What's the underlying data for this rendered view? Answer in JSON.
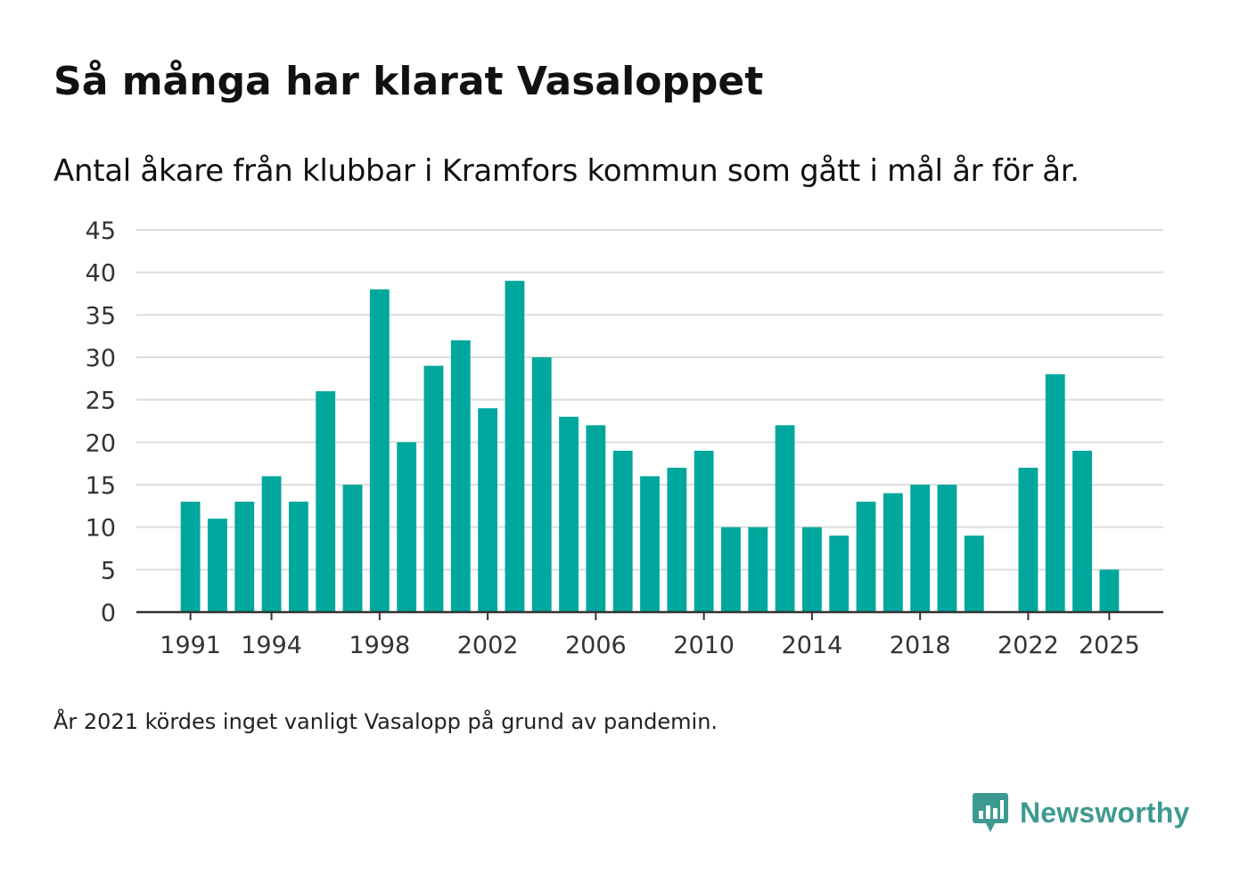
{
  "header": {
    "title": "Så många har klarat Vasaloppet",
    "subtitle": "Antal åkare från klubbar i Kramfors kommun som gått i mål år för år."
  },
  "footnote": "År 2021 kördes inget vanligt Vasalopp på grund av pandemin.",
  "brand": {
    "name": "Newsworthy",
    "icon": "newsworthy-logo-icon",
    "color": "#3e9a91"
  },
  "colors": {
    "bar": "#00a79d",
    "grid": "#dddddd",
    "axis": "#333333"
  },
  "chart_data": {
    "type": "bar",
    "title": "Så många har klarat Vasaloppet",
    "subtitle": "Antal åkare från klubbar i Kramfors kommun som gått i mål år för år.",
    "xlabel": "",
    "ylabel": "",
    "x_range": [
      1989,
      2027
    ],
    "ylim": [
      0,
      45
    ],
    "yticks": [
      0,
      5,
      10,
      15,
      20,
      25,
      30,
      35,
      40,
      45
    ],
    "xticks": [
      1991,
      1994,
      1998,
      2002,
      2006,
      2010,
      2014,
      2018,
      2022,
      2025
    ],
    "grid": true,
    "categories": [
      1991,
      1992,
      1993,
      1994,
      1995,
      1996,
      1997,
      1998,
      1999,
      2000,
      2001,
      2002,
      2003,
      2004,
      2005,
      2006,
      2007,
      2008,
      2009,
      2010,
      2011,
      2012,
      2013,
      2014,
      2015,
      2016,
      2017,
      2018,
      2019,
      2020,
      2021,
      2022,
      2023,
      2024,
      2025
    ],
    "values": [
      13,
      11,
      13,
      16,
      13,
      26,
      15,
      38,
      20,
      29,
      32,
      24,
      39,
      30,
      23,
      22,
      19,
      16,
      17,
      19,
      10,
      10,
      22,
      10,
      9,
      13,
      14,
      15,
      15,
      9,
      null,
      17,
      28,
      19,
      5
    ]
  }
}
